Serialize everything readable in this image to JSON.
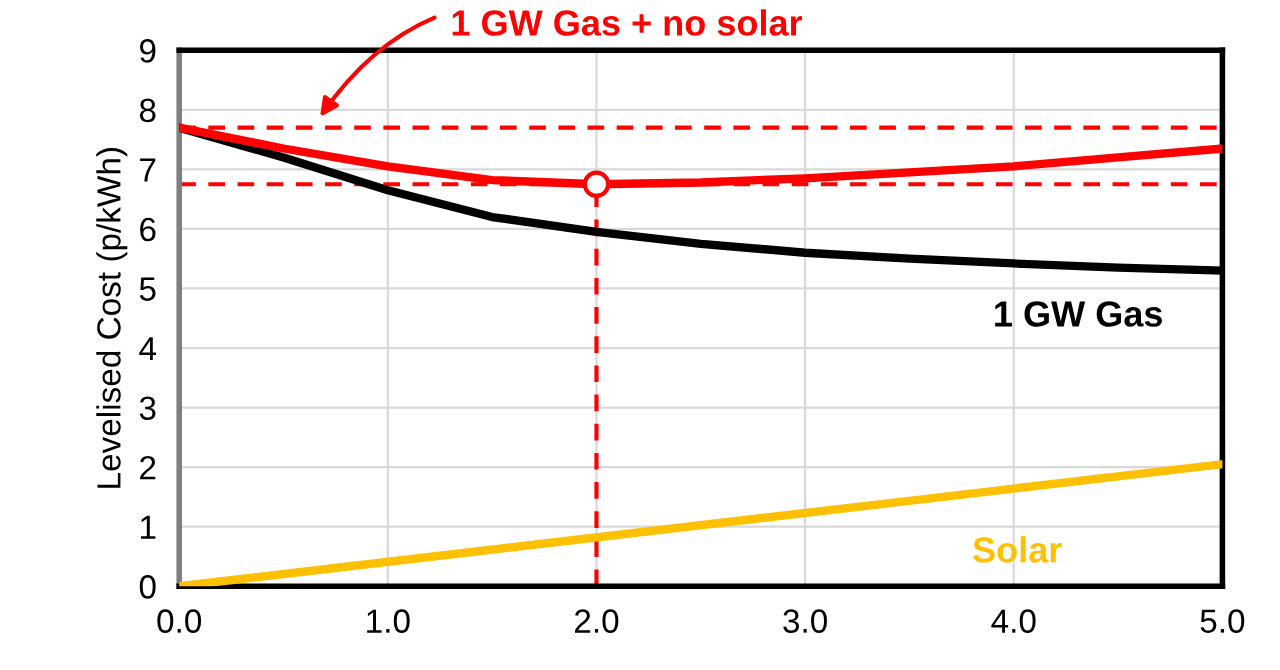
{
  "chart_data": {
    "type": "line",
    "ylabel": "Levelised Cost (p/kWh)",
    "x": [
      0,
      0.5,
      1.0,
      1.5,
      2.0,
      2.5,
      3.0,
      3.5,
      4.0,
      4.5,
      5.0
    ],
    "series": [
      {
        "name": "1 GW Gas",
        "color": "#000000",
        "values": [
          7.7,
          7.2,
          6.65,
          6.2,
          5.95,
          5.75,
          5.6,
          5.5,
          5.42,
          5.35,
          5.3
        ]
      },
      {
        "color": "#ff0000",
        "values": [
          7.7,
          7.35,
          7.05,
          6.82,
          6.75,
          6.78,
          6.85,
          6.95,
          7.05,
          7.2,
          7.35
        ]
      },
      {
        "name": "Solar",
        "color": "#ffc000",
        "x": [
          0,
          5.0
        ],
        "values": [
          0,
          2.05
        ]
      },
      {
        "type": "scatter",
        "color": "#ff0000",
        "marker": "circle",
        "x": [
          2.0
        ],
        "values": [
          6.75
        ]
      }
    ],
    "ref_lines": [
      {
        "axis": "y",
        "value": 7.7,
        "label": "1 GW Gas + no solar",
        "color": "#ff0000",
        "line_style": "dashed"
      },
      {
        "axis": "y",
        "value": 6.75,
        "color": "#ff0000",
        "line_style": "dashed"
      },
      {
        "axis": "x",
        "value": 2.0,
        "color": "#ff0000",
        "line_style": "dashed"
      }
    ],
    "xlim": [
      0,
      5.0
    ],
    "xticks": [
      {
        "value": 0,
        "label": "0.0"
      },
      {
        "value": 1,
        "label": "1.0"
      },
      {
        "value": 2,
        "label": "2.0"
      },
      {
        "value": 3,
        "label": "3.0"
      },
      {
        "value": 4,
        "label": "4.0"
      },
      {
        "value": 5,
        "label": "5.0"
      }
    ],
    "ylim": [
      0,
      9
    ],
    "yticks": [
      0,
      1,
      2,
      3,
      4,
      5,
      6,
      7,
      8,
      9
    ],
    "grid": true,
    "legend": false
  }
}
